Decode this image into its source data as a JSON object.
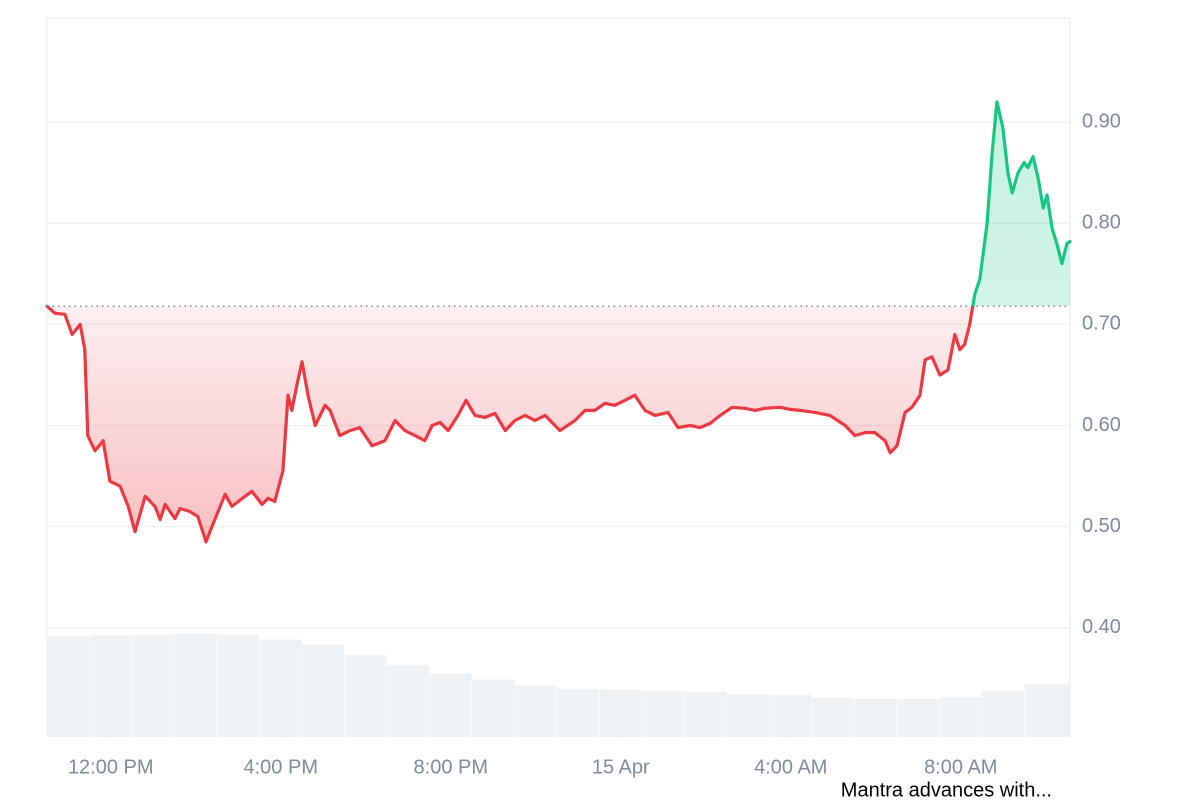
{
  "chart_data": {
    "type": "line",
    "annotation": "Mantra advances with...",
    "x": [
      10.5,
      10.69,
      10.92,
      11.09,
      11.28,
      11.39,
      11.46,
      11.63,
      11.82,
      11.98,
      12.22,
      12.41,
      12.57,
      12.81,
      13.04,
      13.16,
      13.28,
      13.51,
      13.63,
      13.86,
      14.05,
      14.24,
      14.38,
      14.69,
      14.85,
      15.16,
      15.32,
      15.56,
      15.7,
      15.86,
      16.05,
      16.17,
      16.26,
      16.38,
      16.5,
      16.64,
      16.81,
      17.04,
      17.16,
      17.39,
      17.63,
      17.86,
      18.15,
      18.45,
      18.69,
      18.92,
      19.16,
      19.39,
      19.56,
      19.75,
      19.94,
      20.17,
      20.36,
      20.57,
      20.81,
      21.04,
      21.28,
      21.51,
      21.75,
      21.98,
      22.22,
      22.57,
      22.92,
      23.16,
      23.39,
      23.63,
      23.86,
      24.1,
      24.33,
      24.57,
      24.81,
      25.11,
      25.35,
      25.63,
      25.86,
      26.1,
      26.34,
      26.62,
      26.92,
      27.16,
      27.39,
      27.75,
      27.98,
      28.22,
      28.57,
      28.92,
      29.28,
      29.51,
      29.75,
      29.98,
      30.22,
      30.34,
      30.5,
      30.69,
      30.85,
      31.04,
      31.16,
      31.32,
      31.51,
      31.7,
      31.86,
      31.98,
      32.09,
      32.21,
      32.33,
      32.45,
      32.62,
      32.74,
      32.85,
      32.99,
      33.11,
      33.21,
      33.35,
      33.49,
      33.58,
      33.7,
      33.82,
      33.94,
      34.03,
      34.15,
      34.26,
      34.38,
      34.5,
      34.57
    ],
    "series": [
      {
        "values": [
          0.718,
          0.711,
          0.71,
          0.69,
          0.7,
          0.675,
          0.59,
          0.575,
          0.585,
          0.545,
          0.54,
          0.52,
          0.495,
          0.53,
          0.52,
          0.507,
          0.522,
          0.508,
          0.518,
          0.515,
          0.51,
          0.485,
          0.5,
          0.532,
          0.52,
          0.53,
          0.535,
          0.522,
          0.528,
          0.525,
          0.555,
          0.63,
          0.615,
          0.64,
          0.663,
          0.63,
          0.6,
          0.62,
          0.615,
          0.59,
          0.595,
          0.598,
          0.58,
          0.585,
          0.605,
          0.595,
          0.59,
          0.585,
          0.6,
          0.603,
          0.595,
          0.61,
          0.625,
          0.61,
          0.608,
          0.612,
          0.595,
          0.605,
          0.61,
          0.605,
          0.61,
          0.595,
          0.605,
          0.615,
          0.615,
          0.622,
          0.62,
          0.625,
          0.63,
          0.615,
          0.61,
          0.613,
          0.598,
          0.6,
          0.598,
          0.602,
          0.61,
          0.618,
          0.617,
          0.615,
          0.617,
          0.618,
          0.616,
          0.615,
          0.613,
          0.61,
          0.6,
          0.59,
          0.593,
          0.593,
          0.585,
          0.573,
          0.58,
          0.613,
          0.618,
          0.63,
          0.665,
          0.668,
          0.65,
          0.655,
          0.69,
          0.675,
          0.68,
          0.7,
          0.73,
          0.745,
          0.8,
          0.87,
          0.92,
          0.895,
          0.85,
          0.83,
          0.85,
          0.86,
          0.855,
          0.866,
          0.845,
          0.815,
          0.828,
          0.795,
          0.78,
          0.76,
          0.78,
          0.782
        ]
      }
    ],
    "baseline": 0.718,
    "up_color": "#16c784",
    "down_color": "#ea3943",
    "volume": {
      "x": [
        10.5,
        11.5,
        12.5,
        13.5,
        14.5,
        15.5,
        16.5,
        17.5,
        18.5,
        19.5,
        20.5,
        21.5,
        22.5,
        23.5,
        24.5,
        25.5,
        26.5,
        27.5,
        28.5,
        29.5,
        30.5,
        31.5,
        32.5,
        33.5
      ],
      "values": [
        98,
        99,
        100,
        101,
        100,
        95,
        90,
        80,
        70,
        62,
        56,
        50,
        47,
        46,
        45,
        44,
        42,
        41,
        38,
        37,
        37,
        39,
        45,
        52
      ],
      "color": "#eff2f5",
      "ylim": [
        0,
        700
      ]
    },
    "xlim": [
      10.5,
      34.57
    ],
    "xticks": [
      {
        "value": 12,
        "label": "12:00 PM"
      },
      {
        "value": 16,
        "label": "4:00 PM"
      },
      {
        "value": 20,
        "label": "8:00 PM"
      },
      {
        "value": 24,
        "label": "15 Apr"
      },
      {
        "value": 28,
        "label": "4:00 AM"
      },
      {
        "value": 32,
        "label": "8:00 AM"
      }
    ],
    "ylim": [
      0.292,
      1.003
    ],
    "yticks": [
      {
        "value": 0.4,
        "label": "0.40"
      },
      {
        "value": 0.5,
        "label": "0.50"
      },
      {
        "value": 0.6,
        "label": "0.60"
      },
      {
        "value": 0.7,
        "label": "0.70"
      },
      {
        "value": 0.8,
        "label": "0.80"
      },
      {
        "value": 0.9,
        "label": "0.90"
      }
    ],
    "grid": true
  }
}
